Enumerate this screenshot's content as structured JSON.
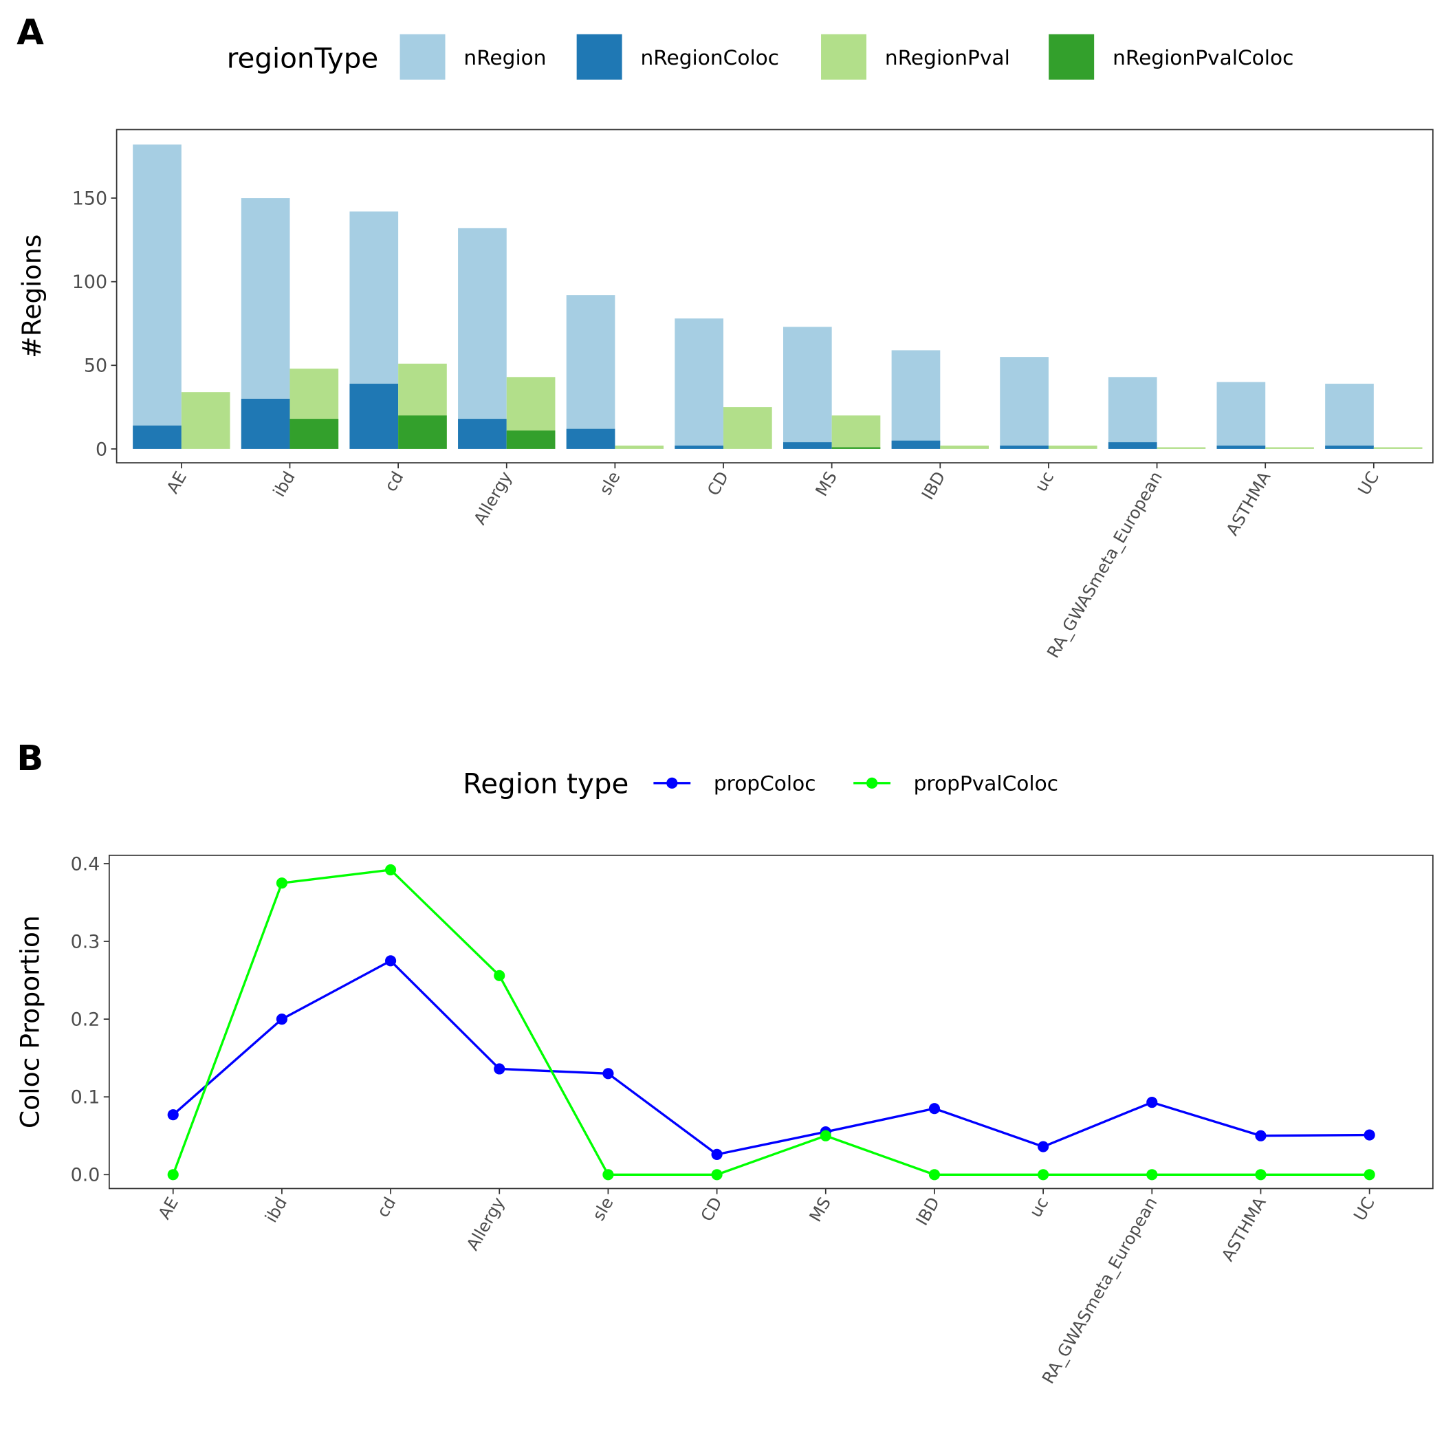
{
  "chart_data": [
    {
      "panel": "A",
      "type": "bar",
      "categories": [
        "AE",
        "ibd",
        "cd",
        "Allergy",
        "sle",
        "CD",
        "MS",
        "IBD",
        "uc",
        "RA_GWASmeta_European",
        "ASTHMA",
        "UC"
      ],
      "ylabel": "#Regions",
      "xlabel": "",
      "ylim": [
        0,
        190
      ],
      "yticks": [
        0,
        50,
        100,
        150
      ],
      "legend_title": "regionType",
      "legend_placement": "top",
      "grid": false,
      "series": [
        {
          "name": "nRegion",
          "color": "#A6CEE3",
          "values": [
            182,
            150,
            142,
            132,
            92,
            78,
            73,
            59,
            55,
            43,
            40,
            39
          ]
        },
        {
          "name": "nRegionColoc",
          "color": "#1F78B4",
          "values": [
            14,
            30,
            39,
            18,
            12,
            2,
            4,
            5,
            2,
            4,
            2,
            2
          ]
        },
        {
          "name": "nRegionPval",
          "color": "#B2DF8A",
          "values": [
            34,
            48,
            51,
            43,
            2,
            25,
            20,
            2,
            2,
            1,
            1,
            1
          ]
        },
        {
          "name": "nRegionPvalColoc",
          "color": "#33A02C",
          "values": [
            0,
            18,
            20,
            11,
            0,
            0,
            1,
            0,
            0,
            0,
            0,
            0
          ]
        }
      ]
    },
    {
      "panel": "B",
      "type": "line",
      "categories": [
        "AE",
        "ibd",
        "cd",
        "Allergy",
        "sle",
        "CD",
        "MS",
        "IBD",
        "uc",
        "RA_GWASmeta_European",
        "ASTHMA",
        "UC"
      ],
      "ylabel": "Coloc Proportion",
      "xlabel": "",
      "ylim": [
        -0.02,
        0.41
      ],
      "yticks": [
        "0.0",
        "0.1",
        "0.2",
        "0.3",
        "0.4"
      ],
      "legend_title": "Region type",
      "legend_placement": "top",
      "grid": false,
      "series": [
        {
          "name": "propColoc",
          "color": "#0000FF",
          "values": [
            0.077,
            0.2,
            0.275,
            0.136,
            0.13,
            0.026,
            0.055,
            0.085,
            0.036,
            0.093,
            0.05,
            0.051
          ]
        },
        {
          "name": "propPvalColoc",
          "color": "#00FF00",
          "values": [
            0,
            0.375,
            0.392,
            0.256,
            0,
            0,
            0.05,
            0,
            0,
            0,
            0,
            0
          ]
        }
      ]
    }
  ]
}
